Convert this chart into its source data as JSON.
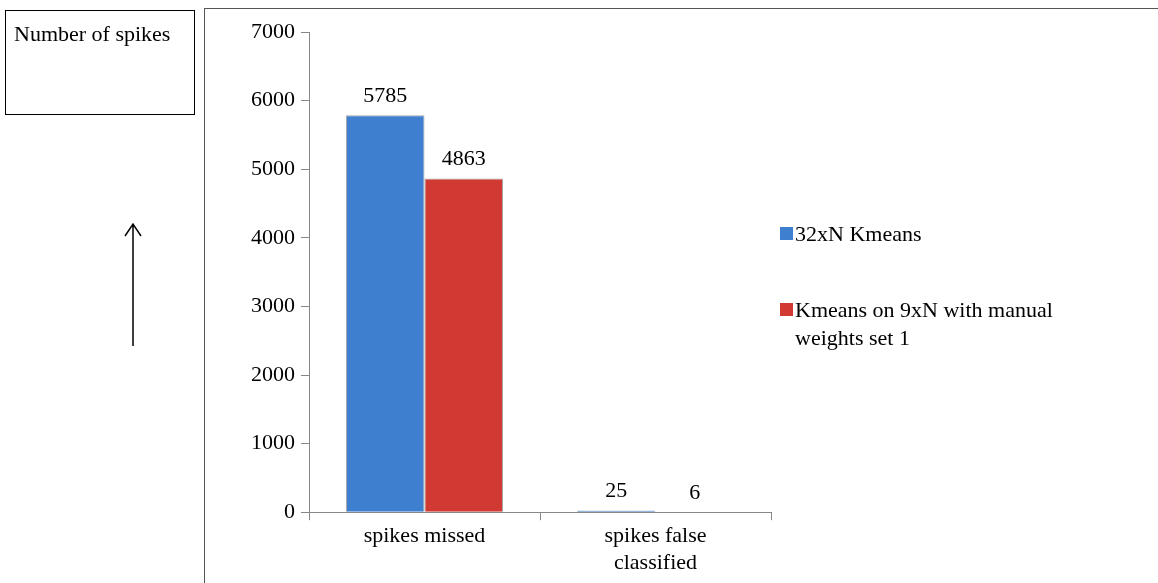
{
  "chart_data": {
    "type": "bar",
    "ylabel": "Number of spikes",
    "categories": [
      "spikes missed",
      "spikes false classified"
    ],
    "series": [
      {
        "name": "32xN Kmeans",
        "color": "#3f7fd0",
        "values": [
          5785,
          25
        ]
      },
      {
        "name": "Kmeans on 9xN with manual weights set 1",
        "color": "#d03a33",
        "values": [
          4863,
          6
        ]
      }
    ],
    "ylim": [
      0,
      7000
    ],
    "yticks": [
      0,
      1000,
      2000,
      3000,
      4000,
      5000,
      6000,
      7000
    ],
    "grid": false,
    "legend": "right",
    "data_labels": true
  }
}
